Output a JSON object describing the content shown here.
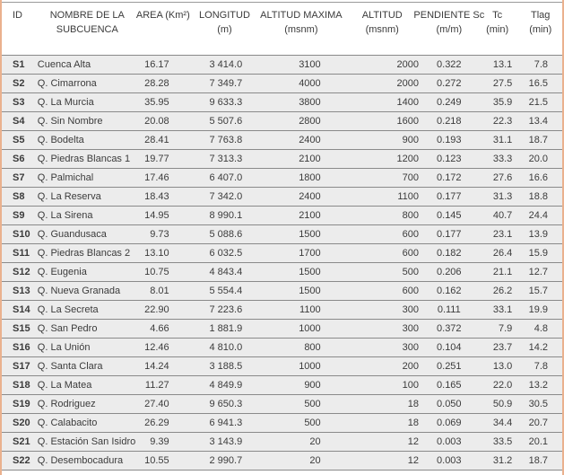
{
  "table": {
    "title_semantic": "Parametros morfometricos de las subcuencas",
    "colors": {
      "accent_border": "#EAB18E",
      "row_background": "#ECECEC",
      "separator_line": "#8A8A8A",
      "header_background": "#FFFFFF",
      "text": "#3B3B3B"
    },
    "columns": [
      {
        "id": "id",
        "line1": "ID",
        "line2": ""
      },
      {
        "id": "nombre",
        "line1": "NOMBRE DE LA",
        "line2": "SUBCUENCA"
      },
      {
        "id": "area",
        "line1": "AREA (Km²)",
        "line2": ""
      },
      {
        "id": "longitud",
        "line1": "LONGITUD",
        "line2": "(m)"
      },
      {
        "id": "altitud-maxima",
        "line1": "ALTITUD MAXIMA",
        "line2": "(msnm)"
      },
      {
        "id": "altitud",
        "line1": "ALTITUD",
        "line2": "(msnm)"
      },
      {
        "id": "pendiente-sc",
        "line1": "PENDIENTE Sc",
        "line2": "(m/m)"
      },
      {
        "id": "tc",
        "line1": "Tc",
        "line2": "(min)"
      },
      {
        "id": "tlag",
        "line1": "Tlag",
        "line2": "(min)"
      }
    ],
    "rows": [
      [
        "S1",
        "Cuenca Alta",
        "16.17",
        "3 414.0",
        "3100",
        "2000",
        "0.322",
        "13.1",
        "7.8"
      ],
      [
        "S2",
        "Q. Cimarrona",
        "28.28",
        "7 349.7",
        "4000",
        "2000",
        "0.272",
        "27.5",
        "16.5"
      ],
      [
        "S3",
        "Q. La Murcia",
        "35.95",
        "9 633.3",
        "3800",
        "1400",
        "0.249",
        "35.9",
        "21.5"
      ],
      [
        "S4",
        "Q. Sin Nombre",
        "20.08",
        "5 507.6",
        "2800",
        "1600",
        "0.218",
        "22.3",
        "13.4"
      ],
      [
        "S5",
        "Q. Bodelta",
        "28.41",
        "7 763.8",
        "2400",
        "900",
        "0.193",
        "31.1",
        "18.7"
      ],
      [
        "S6",
        "Q. Piedras Blancas 1",
        "19.77",
        "7 313.3",
        "2100",
        "1200",
        "0.123",
        "33.3",
        "20.0"
      ],
      [
        "S7",
        "Q. Palmichal",
        "17.46",
        "6 407.0",
        "1800",
        "700",
        "0.172",
        "27.6",
        "16.6"
      ],
      [
        "S8",
        "Q. La Reserva",
        "18.43",
        "7 342.0",
        "2400",
        "1100",
        "0.177",
        "31.3",
        "18.8"
      ],
      [
        "S9",
        "Q. La Sirena",
        "14.95",
        "8 990.1",
        "2100",
        "800",
        "0.145",
        "40.7",
        "24.4"
      ],
      [
        "S10",
        "Q. Guandusaca",
        "9.73",
        "5 088.6",
        "1500",
        "600",
        "0.177",
        "23.1",
        "13.9"
      ],
      [
        "S11",
        "Q. Piedras Blancas 2",
        "13.10",
        "6 032.5",
        "1700",
        "600",
        "0.182",
        "26.4",
        "15.9"
      ],
      [
        "S12",
        "Q. Eugenia",
        "10.75",
        "4 843.4",
        "1500",
        "500",
        "0.206",
        "21.1",
        "12.7"
      ],
      [
        "S13",
        "Q. Nueva Granada",
        "8.01",
        "5 554.4",
        "1500",
        "600",
        "0.162",
        "26.2",
        "15.7"
      ],
      [
        "S14",
        "Q. La Secreta",
        "22.90",
        "7 223.6",
        "1100",
        "300",
        "0.111",
        "33.1",
        "19.9"
      ],
      [
        "S15",
        "Q. San Pedro",
        "4.66",
        "1 881.9",
        "1000",
        "300",
        "0.372",
        "7.9",
        "4.8"
      ],
      [
        "S16",
        "Q. La Unión",
        "12.46",
        "4 810.0",
        "800",
        "300",
        "0.104",
        "23.7",
        "14.2"
      ],
      [
        "S17",
        "Q. Santa Clara",
        "14.24",
        "3 188.5",
        "1000",
        "200",
        "0.251",
        "13.0",
        "7.8"
      ],
      [
        "S18",
        "Q. La Matea",
        "11.27",
        "4 849.9",
        "900",
        "100",
        "0.165",
        "22.0",
        "13.2"
      ],
      [
        "S19",
        "Q. Rodriguez",
        "27.40",
        "9 650.3",
        "500",
        "18",
        "0.050",
        "50.9",
        "30.5"
      ],
      [
        "S20",
        "Q. Calabacito",
        "26.29",
        "6 941.3",
        "500",
        "18",
        "0.069",
        "34.4",
        "20.7"
      ],
      [
        "S21",
        "Q. Estación San Isidro",
        "9.39",
        "3 143.9",
        "20",
        "12",
        "0.003",
        "33.5",
        "20.1"
      ],
      [
        "S22",
        "Q. Desembocadura",
        "10.55",
        "2 990.7",
        "20",
        "12",
        "0.003",
        "31.2",
        "18.7"
      ]
    ]
  }
}
